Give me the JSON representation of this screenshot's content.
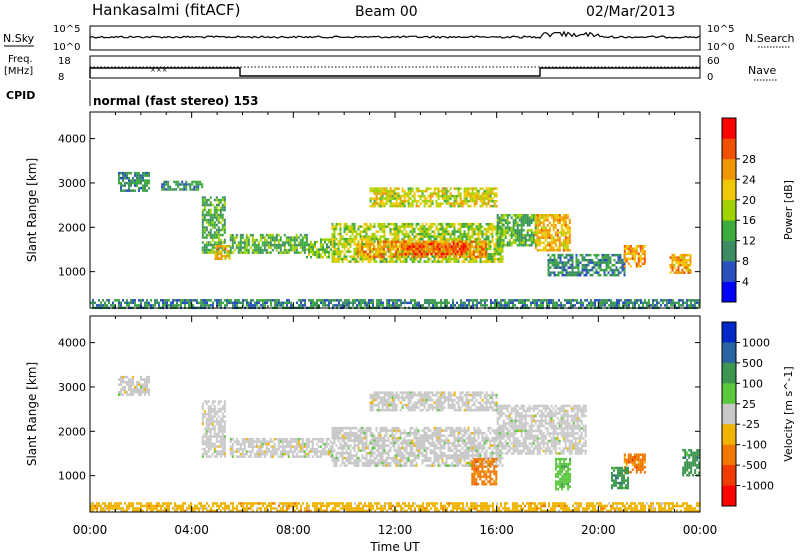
{
  "header": {
    "station": "Hankasalmi (fitACF)",
    "beam": "Beam 00",
    "date": "02/Mar/2013"
  },
  "top_panels": {
    "nsky_label": "N.Sky",
    "nsky_ticks": [
      "10^5",
      "10^0"
    ],
    "nsearch_label": "N.Search",
    "nsearch_ticks": [
      "10^5",
      "10^0"
    ],
    "freq_label_1": "Freq.",
    "freq_label_2": "[MHz]",
    "freq_ticks": [
      "18",
      "8"
    ],
    "nave_label": "Nave",
    "nave_ticks": [
      "60",
      "0"
    ],
    "cpid_label": "CPID",
    "cpid_text": "normal (fast stereo) 153"
  },
  "chart_data": [
    {
      "type": "heatmap",
      "name": "power-panel",
      "xlabel": "",
      "ylabel": "Slant Range [km]",
      "xlim": [
        0,
        24
      ],
      "ylim": [
        180,
        4600
      ],
      "yticks": [
        1000,
        2000,
        3000,
        4000
      ],
      "colorbar": {
        "label": "Power [dB]",
        "range": [
          0,
          32
        ],
        "ticks": [
          "4",
          "8",
          "12",
          "16",
          "20",
          "24",
          "28"
        ],
        "colors": [
          "#0000ff",
          "#2a4fbf",
          "#3c8c64",
          "#3caa3c",
          "#a0d200",
          "#f0c800",
          "#f09600",
          "#f05000",
          "#ff0000"
        ]
      },
      "regions": [
        {
          "t0": 1.1,
          "t1": 2.3,
          "r0": 2850,
          "r1": 3250,
          "level": 9
        },
        {
          "t0": 2.8,
          "t1": 4.4,
          "r0": 2850,
          "r1": 3050,
          "level": 8
        },
        {
          "t0": 4.4,
          "t1": 5.3,
          "r0": 1450,
          "r1": 2700,
          "level": 12
        },
        {
          "t0": 4.9,
          "t1": 5.5,
          "r0": 1300,
          "r1": 1600,
          "level": 22
        },
        {
          "t0": 5.5,
          "t1": 8.5,
          "r0": 1450,
          "r1": 1850,
          "level": 12
        },
        {
          "t0": 8.5,
          "t1": 9.5,
          "r0": 1350,
          "r1": 1750,
          "level": 14
        },
        {
          "t0": 9.5,
          "t1": 16.2,
          "r0": 1200,
          "r1": 2100,
          "level": 16
        },
        {
          "t0": 10.5,
          "t1": 15.6,
          "r0": 1350,
          "r1": 1700,
          "level": 24
        },
        {
          "t0": 12.3,
          "t1": 14.8,
          "r0": 1420,
          "r1": 1650,
          "level": 28
        },
        {
          "t0": 11.0,
          "t1": 16.0,
          "r0": 2500,
          "r1": 2900,
          "level": 18
        },
        {
          "t0": 16.0,
          "t1": 17.6,
          "r0": 1600,
          "r1": 2300,
          "level": 12
        },
        {
          "t0": 17.5,
          "t1": 18.9,
          "r0": 1500,
          "r1": 2300,
          "level": 22
        },
        {
          "t0": 18.0,
          "t1": 21.0,
          "r0": 900,
          "r1": 1400,
          "level": 8
        },
        {
          "t0": 21.0,
          "t1": 21.8,
          "r0": 1100,
          "r1": 1600,
          "level": 24
        },
        {
          "t0": 22.8,
          "t1": 23.6,
          "r0": 1000,
          "r1": 1400,
          "level": 22
        },
        {
          "t0": 0.0,
          "t1": 24.0,
          "r0": 180,
          "r1": 380,
          "level": 8
        }
      ]
    },
    {
      "type": "heatmap",
      "name": "velocity-panel",
      "xlabel": "Time UT",
      "ylabel": "Slant Range [km]",
      "xlim": [
        0,
        24
      ],
      "ylim": [
        180,
        4600
      ],
      "xticks": [
        "00:00",
        "04:00",
        "08:00",
        "12:00",
        "16:00",
        "20:00",
        "00:00"
      ],
      "yticks": [
        1000,
        2000,
        3000,
        4000
      ],
      "colorbar": {
        "label": "Velocity [m s^-1]",
        "ticks": [
          "1000",
          "500",
          "100",
          "25",
          "-25",
          "-100",
          "-500",
          "-1000"
        ],
        "colors": [
          "#0028c8",
          "#2a64a0",
          "#3c9650",
          "#5ac83c",
          "#c8c8c8",
          "#f0b400",
          "#f07800",
          "#f03c00",
          "#ff0000"
        ]
      },
      "regions": [
        {
          "t0": 1.1,
          "t1": 2.3,
          "r0": 2850,
          "r1": 3250,
          "level": 4
        },
        {
          "t0": 4.4,
          "t1": 5.3,
          "r0": 1450,
          "r1": 2700,
          "level": 4
        },
        {
          "t0": 5.5,
          "t1": 9.5,
          "r0": 1450,
          "r1": 1850,
          "level": 4
        },
        {
          "t0": 9.5,
          "t1": 16.2,
          "r0": 1250,
          "r1": 2100,
          "level": 4
        },
        {
          "t0": 11.0,
          "t1": 16.0,
          "r0": 2500,
          "r1": 2900,
          "level": 4
        },
        {
          "t0": 15.0,
          "t1": 16.0,
          "r0": 800,
          "r1": 1400,
          "level": 6
        },
        {
          "t0": 16.0,
          "t1": 19.5,
          "r0": 1500,
          "r1": 2600,
          "level": 4
        },
        {
          "t0": 18.3,
          "t1": 18.9,
          "r0": 700,
          "r1": 1400,
          "level": 3
        },
        {
          "t0": 21.0,
          "t1": 21.8,
          "r0": 1100,
          "r1": 1500,
          "level": 6
        },
        {
          "t0": 20.5,
          "t1": 21.2,
          "r0": 700,
          "r1": 1200,
          "level": 2
        },
        {
          "t0": 23.3,
          "t1": 24.0,
          "r0": 1000,
          "r1": 1600,
          "level": 2
        },
        {
          "t0": 0.0,
          "t1": 24.0,
          "r0": 180,
          "r1": 400,
          "level": 5
        }
      ]
    }
  ]
}
